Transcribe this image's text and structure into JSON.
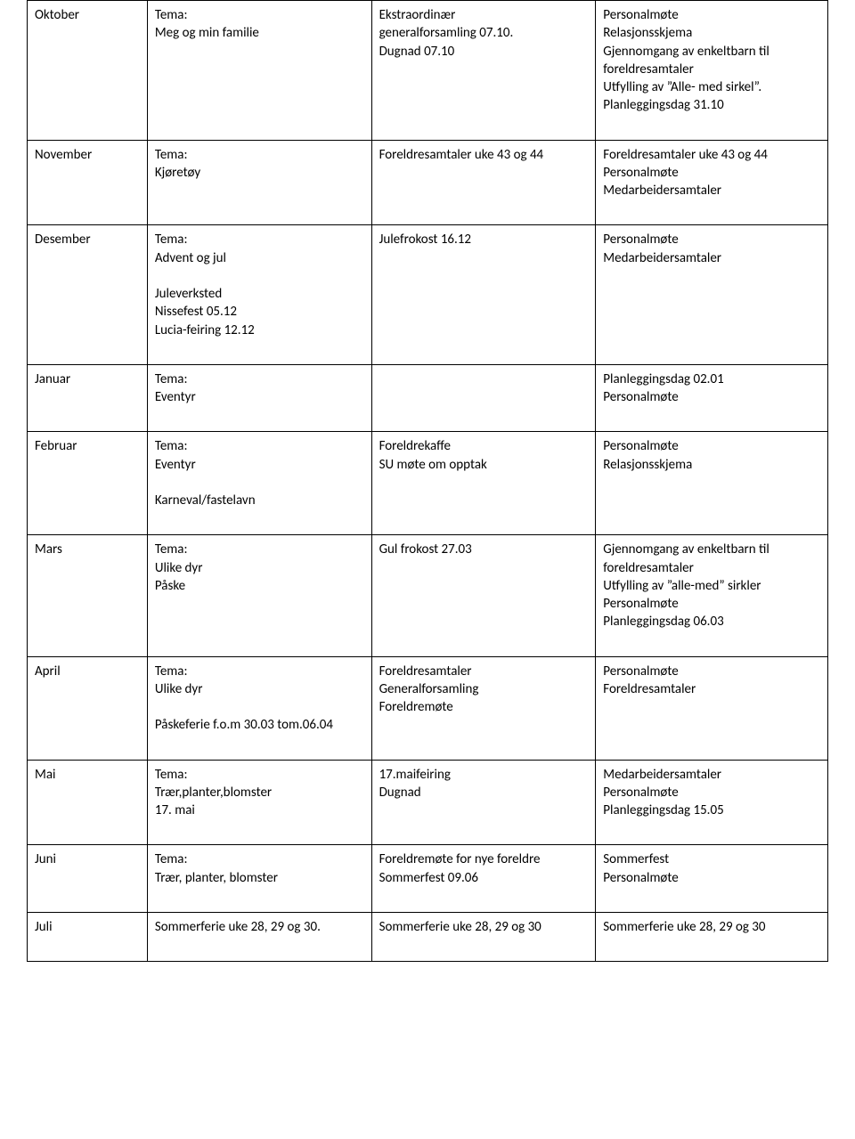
{
  "table": {
    "columns": [
      "month",
      "theme",
      "events",
      "staff"
    ],
    "col_widths_pct": [
      15,
      28,
      28,
      29
    ],
    "border_color": "#000000",
    "background_color": "#ffffff",
    "text_color": "#000000",
    "font_family": "Calibri",
    "font_size_pt": 11,
    "rows": [
      {
        "month": "Oktober",
        "theme": [
          "Tema:",
          "Meg og min familie"
        ],
        "events": [
          "Ekstraordinær",
          "generalforsamling 07.10.",
          "Dugnad 07.10"
        ],
        "staff": [
          "Personalmøte",
          "Relasjonsskjema",
          "Gjennomgang av enkeltbarn til foreldresamtaler",
          "Utfylling av ”Alle- med sirkel”.",
          "Planleggingsdag 31.10"
        ]
      },
      {
        "month": "November",
        "theme": [
          "Tema:",
          "Kjøretøy"
        ],
        "events": [
          "Foreldresamtaler uke 43 og 44"
        ],
        "staff": [
          "Foreldresamtaler uke 43 og 44",
          "Personalmøte",
          "Medarbeidersamtaler"
        ]
      },
      {
        "month": "Desember",
        "theme": [
          "Tema:",
          "Advent og jul",
          "",
          "Juleverksted",
          "Nissefest 05.12",
          "Lucia-feiring 12.12"
        ],
        "events": [
          " Julefrokost 16.12"
        ],
        "staff": [
          "Personalmøte",
          "Medarbeidersamtaler"
        ]
      },
      {
        "month": "Januar",
        "theme": [
          "Tema:",
          "Eventyr"
        ],
        "events": [
          ""
        ],
        "staff": [
          "Planleggingsdag 02.01",
          "Personalmøte"
        ]
      },
      {
        "month": "Februar",
        "theme": [
          "Tema:",
          "Eventyr",
          "",
          "Karneval/fastelavn"
        ],
        "events": [
          "Foreldrekaffe",
          "SU møte om opptak"
        ],
        "staff": [
          "Personalmøte",
          "Relasjonsskjema"
        ]
      },
      {
        "month": "Mars",
        "theme": [
          "Tema:",
          "Ulike dyr",
          "Påske"
        ],
        "events": [
          "Gul frokost 27.03"
        ],
        "staff": [
          "Gjennomgang av enkeltbarn til foreldresamtaler",
          "Utfylling av ”alle-med” sirkler",
          "Personalmøte",
          "Planleggingsdag 06.03"
        ]
      },
      {
        "month": "April",
        "theme": [
          "Tema:",
          "Ulike dyr",
          "",
          "Påskeferie f.o.m 30.03 tom.06.04"
        ],
        "events": [
          "Foreldresamtaler",
          "Generalforsamling",
          "Foreldremøte"
        ],
        "staff": [
          "Personalmøte",
          "Foreldresamtaler"
        ]
      },
      {
        "month": "Mai",
        "theme": [
          "Tema:",
          "Trær,planter,blomster",
          "17. mai"
        ],
        "events": [
          "17.maifeiring",
          "Dugnad"
        ],
        "staff": [
          "Medarbeidersamtaler",
          "Personalmøte",
          "Planleggingsdag 15.05"
        ]
      },
      {
        "month": "Juni",
        "theme": [
          "Tema:",
          "Trær, planter, blomster"
        ],
        "events": [
          "Foreldremøte for nye foreldre",
          "Sommerfest 09.06"
        ],
        "staff": [
          "Sommerfest",
          "Personalmøte"
        ]
      },
      {
        "month": "Juli",
        "theme": [
          "Sommerferie uke 28, 29 og 30."
        ],
        "events": [
          "Sommerferie uke 28, 29 og 30"
        ],
        "staff": [
          "Sommerferie uke 28, 29 og 30"
        ]
      }
    ]
  }
}
